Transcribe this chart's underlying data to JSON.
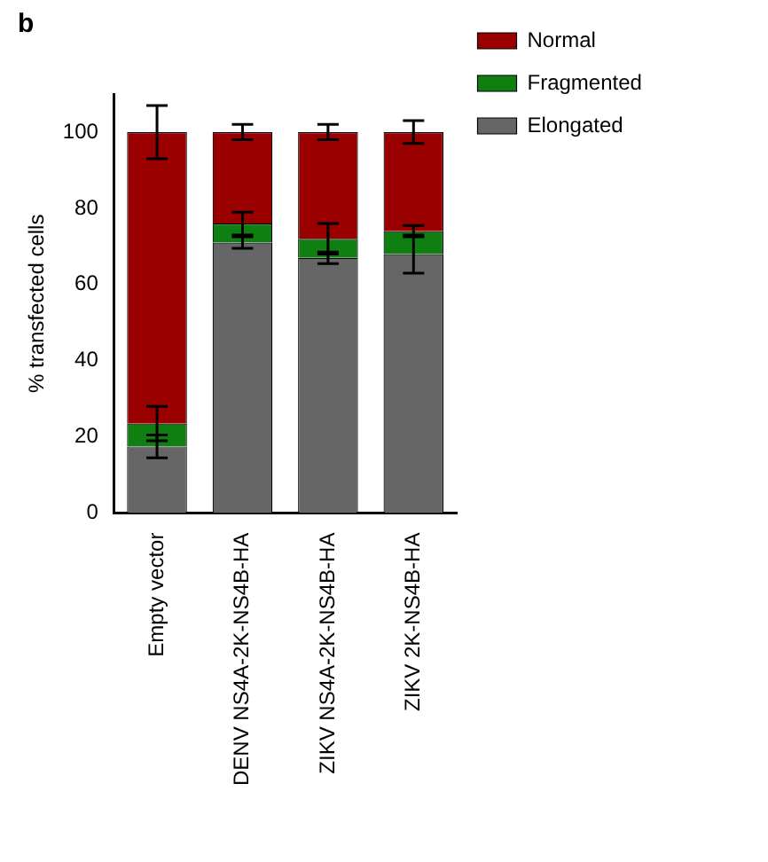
{
  "chart_data": {
    "type": "bar",
    "title": "b",
    "ylabel": "% transfected cells",
    "stacked": true,
    "categories": [
      "Empty vector",
      "DENV NS4A-2K-NS4B-HA",
      "ZIKV NS4A-2K-NS4B-HA",
      "ZIKV 2K-NS4B-HA"
    ],
    "series": [
      {
        "name": "Elongated",
        "color": "#666666",
        "values": [
          17.5,
          71,
          67,
          68
        ],
        "errors": [
          3,
          1.5,
          1.5,
          5
        ]
      },
      {
        "name": "Fragmented",
        "color": "#0f7f12",
        "values": [
          6,
          5,
          5,
          6
        ],
        "errors": [
          4.5,
          3,
          4,
          1.5
        ]
      },
      {
        "name": "Normal",
        "color": "#9b0000",
        "values": [
          76.5,
          24,
          28,
          26
        ],
        "errors": [
          7,
          2,
          2,
          3
        ]
      }
    ],
    "ylim": [
      0,
      110
    ],
    "yticks": [
      0,
      20,
      40,
      60,
      80,
      100
    ],
    "grid": false,
    "legend": "top right"
  }
}
